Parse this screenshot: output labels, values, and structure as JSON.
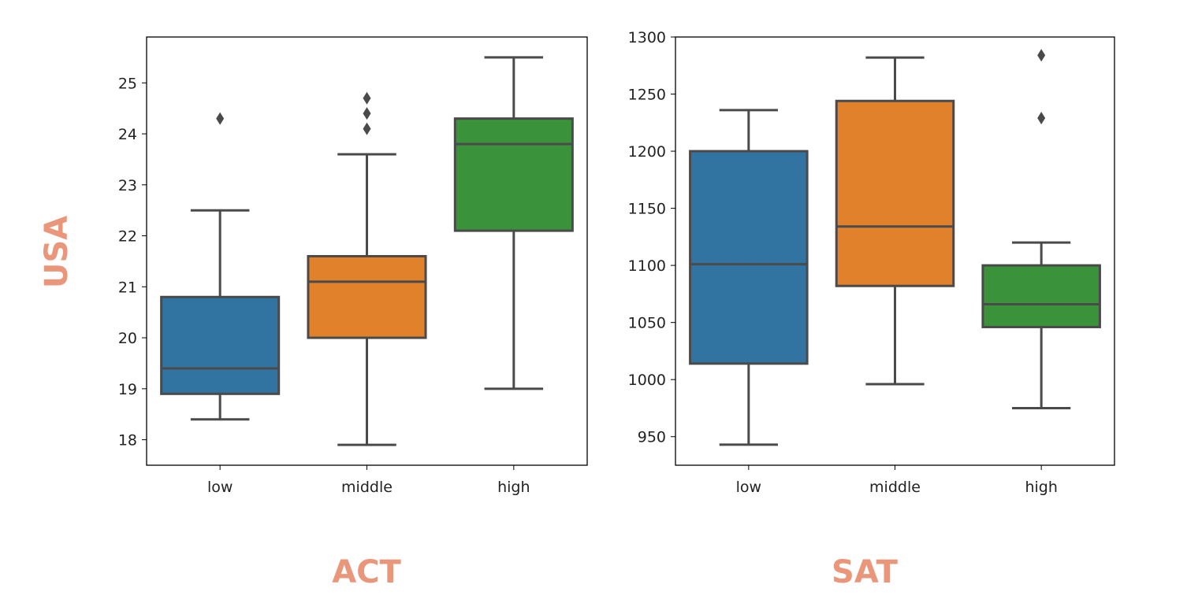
{
  "figure": {
    "row_label": "USA",
    "label_color": "#E9967A",
    "box_edge_color": "#4a4a4a"
  },
  "chart_data": [
    {
      "type": "box",
      "title": "ACT",
      "xlabel": "ACT",
      "ylabel": "",
      "ylim": [
        17.5,
        25.9
      ],
      "yticks": [
        18,
        19,
        20,
        21,
        22,
        23,
        24,
        25
      ],
      "categories": [
        "low",
        "middle",
        "high"
      ],
      "colors": [
        "#3274A1",
        "#E1812C",
        "#3A923A"
      ],
      "boxes": [
        {
          "category": "low",
          "whisker_low": 18.4,
          "q1": 18.9,
          "median": 19.4,
          "q3": 20.8,
          "whisker_high": 22.5,
          "outliers": [
            24.3
          ]
        },
        {
          "category": "middle",
          "whisker_low": 17.9,
          "q1": 20.0,
          "median": 21.1,
          "q3": 21.6,
          "whisker_high": 23.6,
          "outliers": [
            24.1,
            24.4,
            24.7
          ]
        },
        {
          "category": "high",
          "whisker_low": 19.0,
          "q1": 22.1,
          "median": 23.8,
          "q3": 24.3,
          "whisker_high": 25.5,
          "outliers": []
        }
      ]
    },
    {
      "type": "box",
      "title": "SAT",
      "xlabel": "SAT",
      "ylabel": "",
      "ylim": [
        925,
        1300
      ],
      "yticks": [
        950,
        1000,
        1050,
        1100,
        1150,
        1200,
        1250,
        1300
      ],
      "categories": [
        "low",
        "middle",
        "high"
      ],
      "colors": [
        "#3274A1",
        "#E1812C",
        "#3A923A"
      ],
      "boxes": [
        {
          "category": "low",
          "whisker_low": 943,
          "q1": 1014,
          "median": 1101,
          "q3": 1200,
          "whisker_high": 1236,
          "outliers": []
        },
        {
          "category": "middle",
          "whisker_low": 996,
          "q1": 1082,
          "median": 1134,
          "q3": 1244,
          "whisker_high": 1282,
          "outliers": []
        },
        {
          "category": "high",
          "whisker_low": 975,
          "q1": 1046,
          "median": 1066,
          "q3": 1100,
          "whisker_high": 1120,
          "outliers": [
            1229,
            1284
          ]
        }
      ]
    }
  ]
}
